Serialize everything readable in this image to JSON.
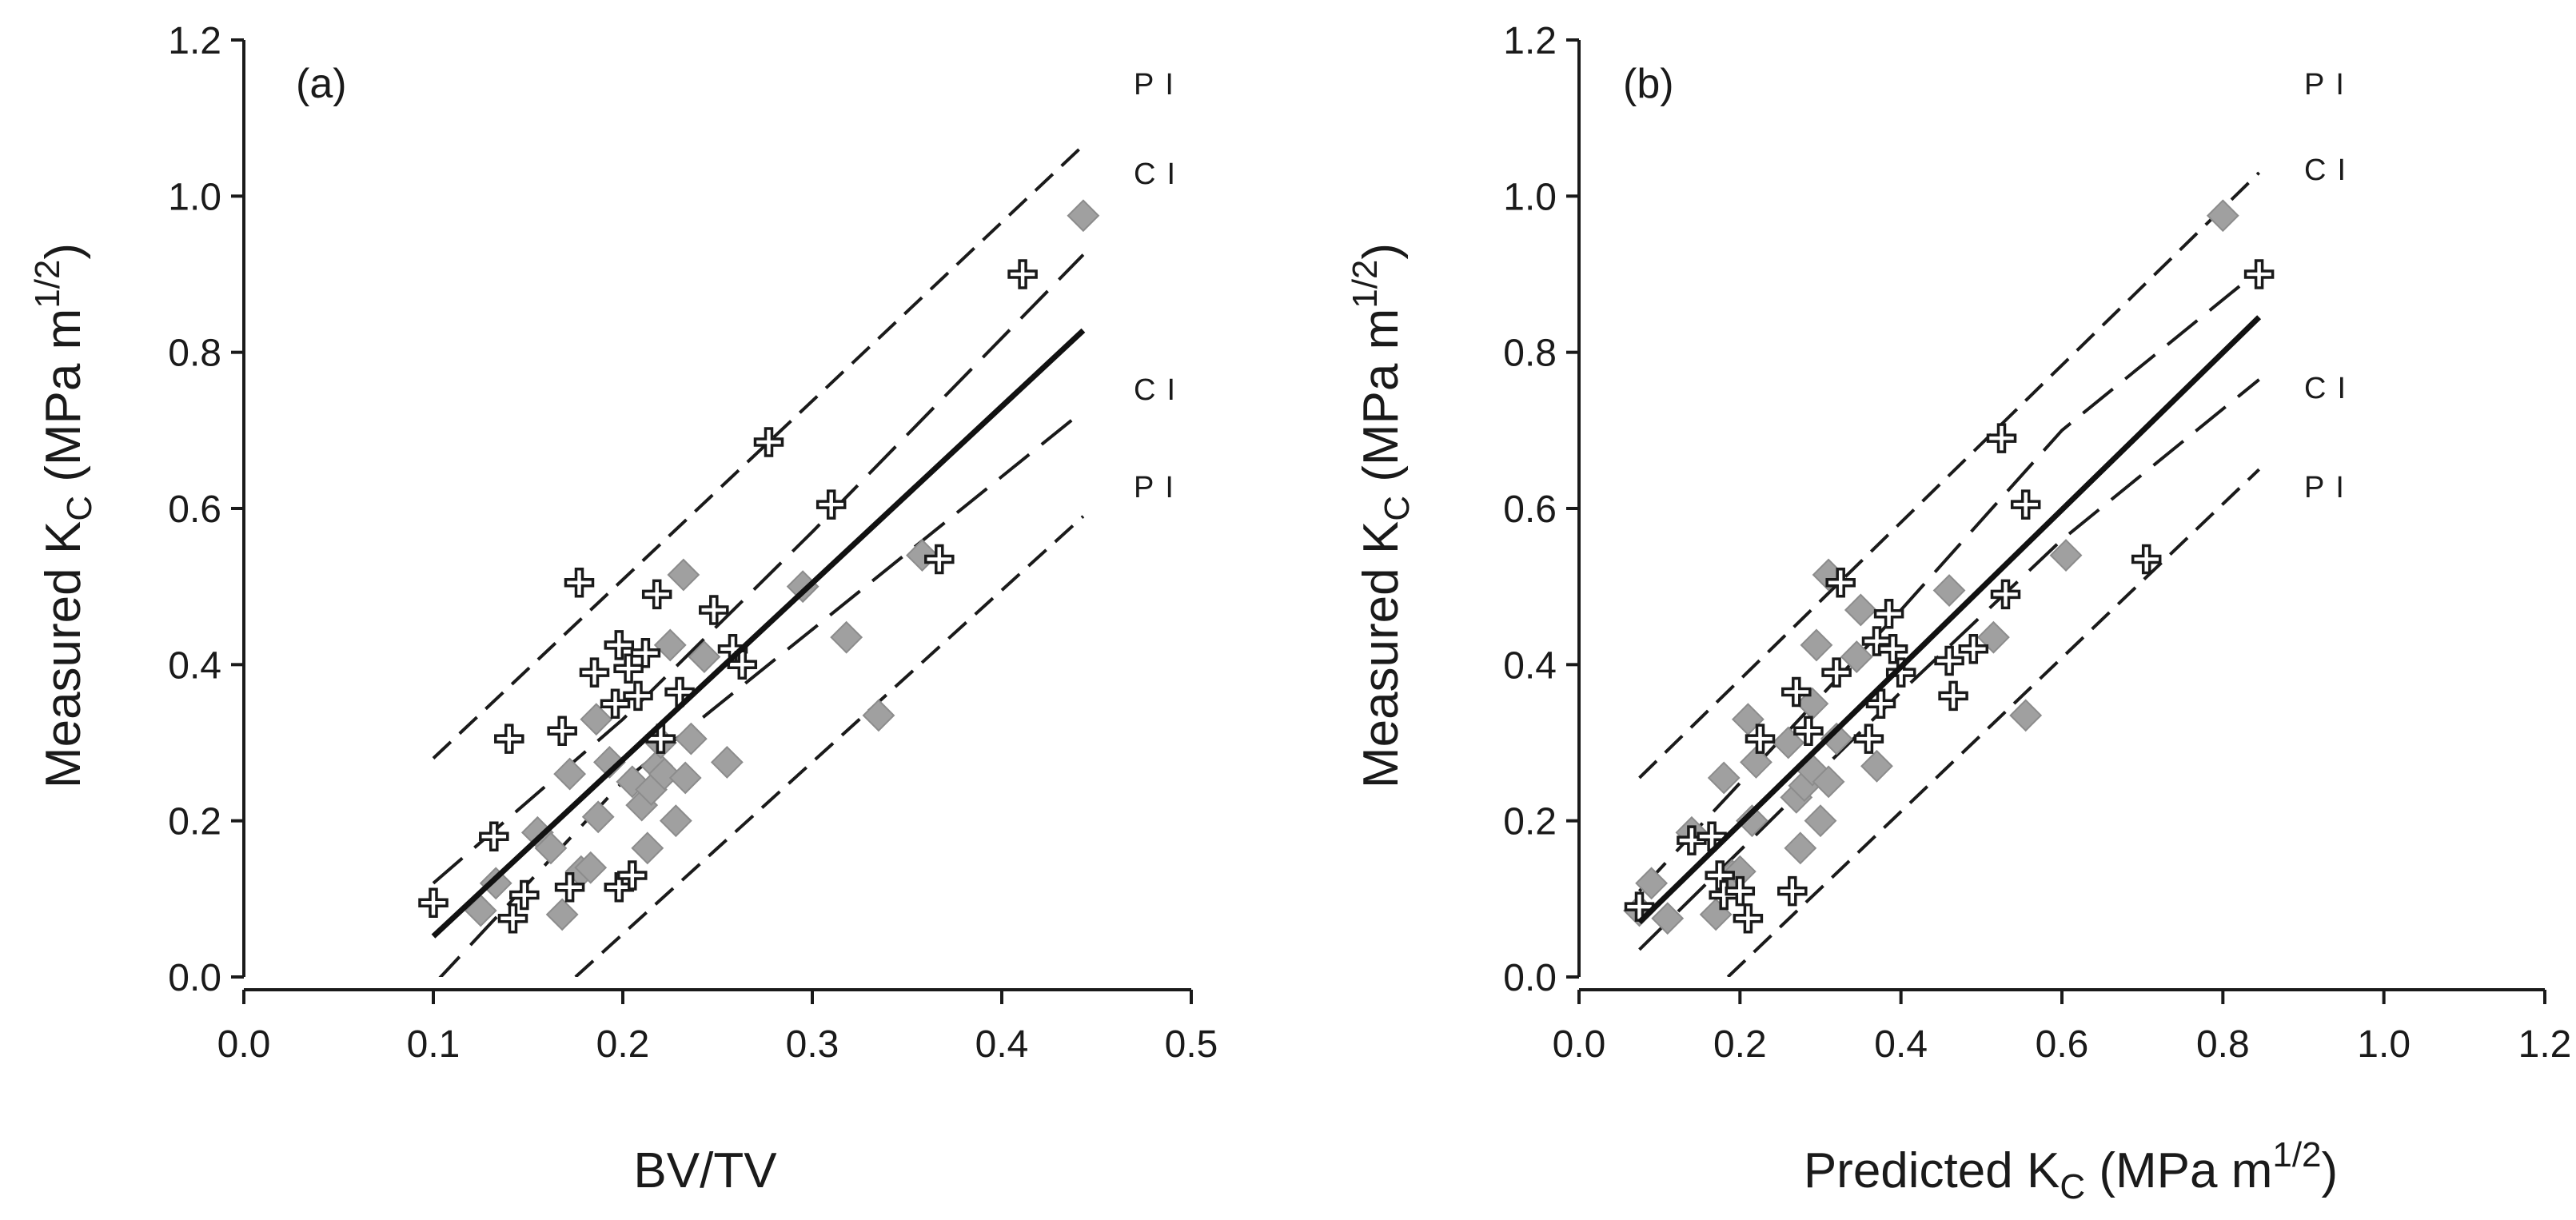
{
  "chart_data": [
    {
      "type": "scatter",
      "panel_label": "(a)",
      "xlabel": "BV/TV",
      "ylabel": {
        "main": "Measured K",
        "sub": "C",
        "unit_open": " (MPa m",
        "sup": "1/2",
        "unit_close": ")"
      },
      "xlim": [
        0.0,
        0.5
      ],
      "ylim": [
        0.0,
        1.2
      ],
      "xticks": [
        "0.0",
        "0.1",
        "0.2",
        "0.3",
        "0.4",
        "0.5"
      ],
      "yticks": [
        "0.0",
        "0.2",
        "0.4",
        "0.6",
        "0.8",
        "1.0",
        "1.2"
      ],
      "series": [
        {
          "name": "diamonds",
          "marker": "diamond",
          "color": "#a0a0a0",
          "points": [
            [
              0.125,
              0.085
            ],
            [
              0.133,
              0.12
            ],
            [
              0.155,
              0.185
            ],
            [
              0.162,
              0.165
            ],
            [
              0.168,
              0.08
            ],
            [
              0.172,
              0.26
            ],
            [
              0.178,
              0.135
            ],
            [
              0.183,
              0.14
            ],
            [
              0.186,
              0.33
            ],
            [
              0.187,
              0.205
            ],
            [
              0.193,
              0.275
            ],
            [
              0.205,
              0.25
            ],
            [
              0.21,
              0.22
            ],
            [
              0.213,
              0.165
            ],
            [
              0.215,
              0.24
            ],
            [
              0.218,
              0.27
            ],
            [
              0.22,
              0.3
            ],
            [
              0.222,
              0.26
            ],
            [
              0.225,
              0.425
            ],
            [
              0.228,
              0.2
            ],
            [
              0.232,
              0.515
            ],
            [
              0.233,
              0.255
            ],
            [
              0.236,
              0.305
            ],
            [
              0.243,
              0.41
            ],
            [
              0.255,
              0.275
            ],
            [
              0.295,
              0.5
            ],
            [
              0.318,
              0.435
            ],
            [
              0.335,
              0.335
            ],
            [
              0.358,
              0.54
            ],
            [
              0.443,
              0.975
            ]
          ]
        },
        {
          "name": "crosses",
          "marker": "cross",
          "color": "#1a1a1a",
          "points": [
            [
              0.1,
              0.095
            ],
            [
              0.132,
              0.18
            ],
            [
              0.14,
              0.305
            ],
            [
              0.142,
              0.075
            ],
            [
              0.148,
              0.105
            ],
            [
              0.168,
              0.315
            ],
            [
              0.172,
              0.115
            ],
            [
              0.177,
              0.505
            ],
            [
              0.185,
              0.39
            ],
            [
              0.196,
              0.35
            ],
            [
              0.198,
              0.425
            ],
            [
              0.198,
              0.115
            ],
            [
              0.203,
              0.395
            ],
            [
              0.205,
              0.13
            ],
            [
              0.208,
              0.36
            ],
            [
              0.212,
              0.415
            ],
            [
              0.218,
              0.49
            ],
            [
              0.22,
              0.305
            ],
            [
              0.23,
              0.365
            ],
            [
              0.248,
              0.47
            ],
            [
              0.258,
              0.42
            ],
            [
              0.263,
              0.4
            ],
            [
              0.277,
              0.685
            ],
            [
              0.31,
              0.605
            ],
            [
              0.367,
              0.535
            ],
            [
              0.411,
              0.9
            ]
          ]
        }
      ],
      "fit": {
        "x": [
          0.1,
          0.443
        ],
        "y": [
          0.052,
          0.828
        ]
      },
      "ci_upper": [
        [
          0.1,
          0.12
        ],
        [
          0.2,
          0.33
        ],
        [
          0.3,
          0.57
        ],
        [
          0.443,
          0.925
        ]
      ],
      "ci_lower": [
        [
          0.1,
          -0.01
        ],
        [
          0.2,
          0.25
        ],
        [
          0.3,
          0.445
        ],
        [
          0.443,
          0.725
        ]
      ],
      "pi_upper": [
        [
          0.1,
          0.28
        ],
        [
          0.443,
          1.065
        ]
      ],
      "pi_lower": [
        [
          0.175,
          0.0
        ],
        [
          0.443,
          0.59
        ]
      ],
      "band_labels": {
        "pi_top": "PI",
        "ci_top": "CI",
        "ci_bottom": "CI",
        "pi_bottom": "PI"
      }
    },
    {
      "type": "scatter",
      "panel_label": "(b)",
      "xlabel": {
        "main": "Predicted K",
        "sub": "C",
        "unit_open": " (MPa m",
        "sup": "1/2",
        "unit_close": ")"
      },
      "ylabel": {
        "main": "Measured K",
        "sub": "C",
        "unit_open": " (MPa m",
        "sup": "1/2",
        "unit_close": ")"
      },
      "xlim": [
        0.0,
        1.2
      ],
      "ylim": [
        0.0,
        1.2
      ],
      "xticks": [
        "0.0",
        "0.2",
        "0.4",
        "0.6",
        "0.8",
        "1.0",
        "1.2"
      ],
      "yticks": [
        "0.0",
        "0.2",
        "0.4",
        "0.6",
        "0.8",
        "1.0",
        "1.2"
      ],
      "series": [
        {
          "name": "diamonds",
          "marker": "diamond",
          "color": "#a0a0a0",
          "points": [
            [
              0.075,
              0.085
            ],
            [
              0.09,
              0.12
            ],
            [
              0.11,
              0.075
            ],
            [
              0.14,
              0.185
            ],
            [
              0.17,
              0.08
            ],
            [
              0.18,
              0.255
            ],
            [
              0.19,
              0.13
            ],
            [
              0.2,
              0.135
            ],
            [
              0.21,
              0.33
            ],
            [
              0.215,
              0.2
            ],
            [
              0.22,
              0.275
            ],
            [
              0.26,
              0.3
            ],
            [
              0.27,
              0.23
            ],
            [
              0.275,
              0.165
            ],
            [
              0.28,
              0.245
            ],
            [
              0.29,
              0.265
            ],
            [
              0.29,
              0.35
            ],
            [
              0.295,
              0.425
            ],
            [
              0.3,
              0.2
            ],
            [
              0.31,
              0.515
            ],
            [
              0.31,
              0.25
            ],
            [
              0.32,
              0.305
            ],
            [
              0.345,
              0.41
            ],
            [
              0.35,
              0.47
            ],
            [
              0.37,
              0.27
            ],
            [
              0.46,
              0.495
            ],
            [
              0.515,
              0.435
            ],
            [
              0.555,
              0.335
            ],
            [
              0.605,
              0.54
            ],
            [
              0.8,
              0.975
            ]
          ]
        },
        {
          "name": "crosses",
          "marker": "cross",
          "color": "#1a1a1a",
          "points": [
            [
              0.075,
              0.09
            ],
            [
              0.14,
              0.175
            ],
            [
              0.165,
              0.18
            ],
            [
              0.175,
              0.13
            ],
            [
              0.18,
              0.105
            ],
            [
              0.2,
              0.11
            ],
            [
              0.21,
              0.075
            ],
            [
              0.225,
              0.305
            ],
            [
              0.265,
              0.11
            ],
            [
              0.27,
              0.365
            ],
            [
              0.285,
              0.315
            ],
            [
              0.32,
              0.39
            ],
            [
              0.325,
              0.505
            ],
            [
              0.36,
              0.305
            ],
            [
              0.37,
              0.43
            ],
            [
              0.375,
              0.35
            ],
            [
              0.385,
              0.465
            ],
            [
              0.39,
              0.42
            ],
            [
              0.4,
              0.39
            ],
            [
              0.46,
              0.405
            ],
            [
              0.465,
              0.36
            ],
            [
              0.49,
              0.42
            ],
            [
              0.525,
              0.69
            ],
            [
              0.53,
              0.49
            ],
            [
              0.555,
              0.605
            ],
            [
              0.705,
              0.535
            ],
            [
              0.845,
              0.9
            ]
          ]
        }
      ],
      "fit": {
        "x": [
          0.075,
          0.845
        ],
        "y": [
          0.07,
          0.845
        ]
      },
      "ci_upper": [
        [
          0.075,
          0.11
        ],
        [
          0.4,
          0.47
        ],
        [
          0.6,
          0.7
        ],
        [
          0.845,
          0.905
        ]
      ],
      "ci_lower": [
        [
          0.075,
          0.035
        ],
        [
          0.4,
          0.365
        ],
        [
          0.6,
          0.56
        ],
        [
          0.845,
          0.765
        ]
      ],
      "pi_upper": [
        [
          0.075,
          0.255
        ],
        [
          0.845,
          1.03
        ]
      ],
      "pi_lower": [
        [
          0.185,
          0.0
        ],
        [
          0.845,
          0.65
        ]
      ],
      "band_labels": {
        "pi_top": "PI",
        "ci_top": "CI",
        "ci_bottom": "CI",
        "pi_bottom": "PI"
      }
    }
  ]
}
